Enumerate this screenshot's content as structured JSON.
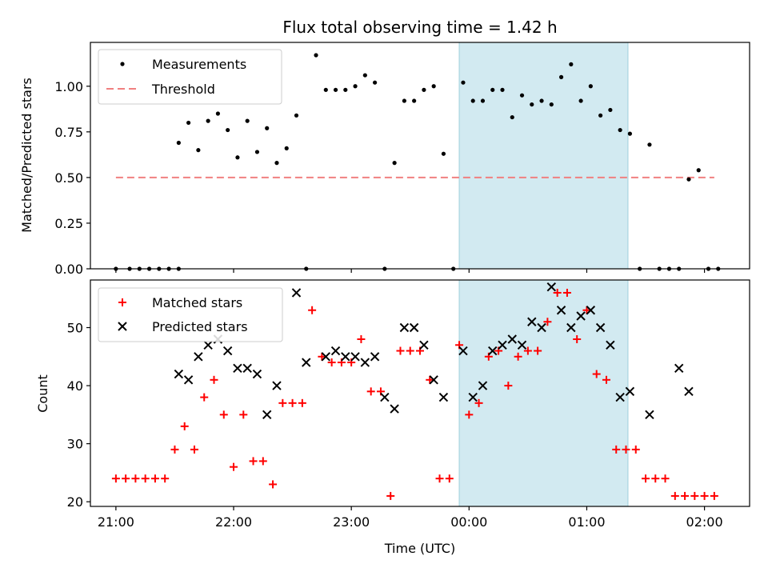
{
  "title": "Flux total observing time = 1.42 h",
  "colors": {
    "measurements": "#000000",
    "threshold": "#f08080",
    "matched": "#ff0000",
    "predicted": "#000000",
    "span": "#add8e6"
  },
  "chart_data": [
    {
      "type": "scatter",
      "panel": "top",
      "ylabel": "Matched/Predicted stars",
      "ylim": [
        0,
        1.24
      ],
      "xlim": [
        "20:47",
        "02:23"
      ],
      "yticks": [
        "0.00",
        "0.25",
        "0.50",
        "0.75",
        "1.00"
      ],
      "highlight_span": [
        "23:55",
        "01:21"
      ],
      "threshold": {
        "name": "Threshold",
        "y": 0.5,
        "x_range": [
          "21:00",
          "02:05"
        ]
      },
      "legend": {
        "position": "top-left",
        "entries": [
          "Measurements",
          "Threshold"
        ]
      },
      "series": [
        {
          "name": "Measurements",
          "marker": "dot",
          "x": [
            "21:00",
            "21:07",
            "21:12",
            "21:17",
            "21:22",
            "21:27",
            "21:32",
            "21:32",
            "21:37",
            "21:42",
            "21:47",
            "21:52",
            "21:57",
            "22:02",
            "22:07",
            "22:12",
            "22:17",
            "22:22",
            "22:27",
            "22:32",
            "22:37",
            "22:42",
            "22:47",
            "22:52",
            "22:57",
            "23:02",
            "23:07",
            "23:12",
            "23:17",
            "23:22",
            "23:27",
            "23:32",
            "23:37",
            "23:42",
            "23:47",
            "23:52",
            "23:57",
            "24:02",
            "24:07",
            "24:12",
            "24:17",
            "24:22",
            "24:27",
            "24:32",
            "24:37",
            "24:42",
            "24:47",
            "24:52",
            "24:57",
            "25:02",
            "25:07",
            "25:12",
            "25:17",
            "25:22",
            "25:27",
            "25:32",
            "25:37",
            "25:42",
            "25:47",
            "25:52",
            "25:57",
            "26:02",
            "26:07"
          ],
          "y": [
            0,
            0,
            0,
            0,
            0,
            0,
            0,
            0.69,
            0.8,
            0.65,
            0.81,
            0.85,
            0.76,
            0.61,
            0.81,
            0.64,
            0.77,
            0.58,
            0.66,
            0.84,
            0,
            1.17,
            0.98,
            0.98,
            0.98,
            1.0,
            1.06,
            1.02,
            0,
            0.58,
            0.92,
            0.92,
            0.98,
            1.0,
            0.63,
            0,
            1.02,
            0.92,
            0.92,
            0.98,
            0.98,
            0.83,
            0.95,
            0.9,
            0.92,
            0.9,
            1.05,
            1.12,
            0.92,
            1.0,
            0.84,
            0.87,
            0.76,
            0.74,
            0,
            0.68,
            0,
            0,
            0,
            0.49,
            0.54,
            0,
            0
          ]
        }
      ]
    },
    {
      "type": "scatter",
      "panel": "bottom",
      "xlabel": "Time (UTC)",
      "ylabel": "Count",
      "ylim": [
        19.2,
        58.2
      ],
      "xlim": [
        "20:47",
        "02:23"
      ],
      "yticks": [
        "20",
        "30",
        "40",
        "50"
      ],
      "xticks": [
        "21:00",
        "22:00",
        "23:00",
        "00:00",
        "01:00",
        "02:00"
      ],
      "highlight_span": [
        "23:55",
        "01:21"
      ],
      "legend": {
        "position": "top-left",
        "entries": [
          "Matched stars",
          "Predicted stars"
        ]
      },
      "series": [
        {
          "name": "Matched stars",
          "marker": "plus",
          "x": [
            "21:00",
            "21:05",
            "21:10",
            "21:15",
            "21:20",
            "21:25",
            "21:30",
            "21:35",
            "21:40",
            "21:45",
            "21:50",
            "21:55",
            "22:00",
            "22:05",
            "22:10",
            "22:15",
            "22:20",
            "22:25",
            "22:30",
            "22:35",
            "22:40",
            "22:45",
            "22:50",
            "22:55",
            "23:00",
            "23:05",
            "23:10",
            "23:15",
            "23:20",
            "23:25",
            "23:30",
            "23:35",
            "23:40",
            "23:45",
            "23:50",
            "23:55",
            "24:00",
            "24:05",
            "24:10",
            "24:15",
            "24:20",
            "24:25",
            "24:30",
            "24:35",
            "24:40",
            "24:45",
            "24:50",
            "24:55",
            "25:00",
            "25:05",
            "25:10",
            "25:15",
            "25:20",
            "25:25",
            "25:30",
            "25:35",
            "25:40",
            "25:45",
            "25:50",
            "25:55",
            "26:00",
            "26:05"
          ],
          "y": [
            24,
            24,
            24,
            24,
            24,
            24,
            29,
            33,
            29,
            38,
            41,
            35,
            26,
            35,
            27,
            27,
            23,
            37,
            37,
            37,
            53,
            45,
            44,
            44,
            44,
            48,
            39,
            39,
            21,
            46,
            46,
            46,
            41,
            24,
            24,
            47,
            35,
            37,
            45,
            46,
            40,
            45,
            46,
            46,
            51,
            56,
            56,
            48,
            53,
            42,
            41,
            29,
            29,
            29,
            24,
            24,
            24,
            21,
            21,
            21,
            21,
            21
          ]
        },
        {
          "name": "Predicted stars",
          "marker": "x",
          "x": [
            "21:32",
            "21:37",
            "21:42",
            "21:47",
            "21:52",
            "21:57",
            "22:02",
            "22:07",
            "22:12",
            "22:17",
            "22:22",
            "22:32",
            "22:37",
            "22:47",
            "22:52",
            "22:57",
            "23:02",
            "23:07",
            "23:12",
            "23:17",
            "23:22",
            "23:27",
            "23:32",
            "23:37",
            "23:42",
            "23:47",
            "23:57",
            "24:02",
            "24:07",
            "24:12",
            "24:17",
            "24:22",
            "24:27",
            "24:32",
            "24:37",
            "24:42",
            "24:47",
            "24:52",
            "24:57",
            "25:02",
            "25:07",
            "25:12",
            "25:17",
            "25:22",
            "25:32",
            "25:47",
            "25:52"
          ],
          "y": [
            42,
            41,
            45,
            47,
            48,
            46,
            43,
            43,
            42,
            35,
            40,
            56,
            44,
            45,
            46,
            45,
            45,
            44,
            45,
            38,
            36,
            50,
            50,
            47,
            41,
            38,
            46,
            38,
            40,
            46,
            47,
            48,
            47,
            51,
            50,
            57,
            53,
            50,
            52,
            53,
            50,
            47,
            38,
            39,
            35,
            43,
            39
          ]
        }
      ]
    }
  ]
}
